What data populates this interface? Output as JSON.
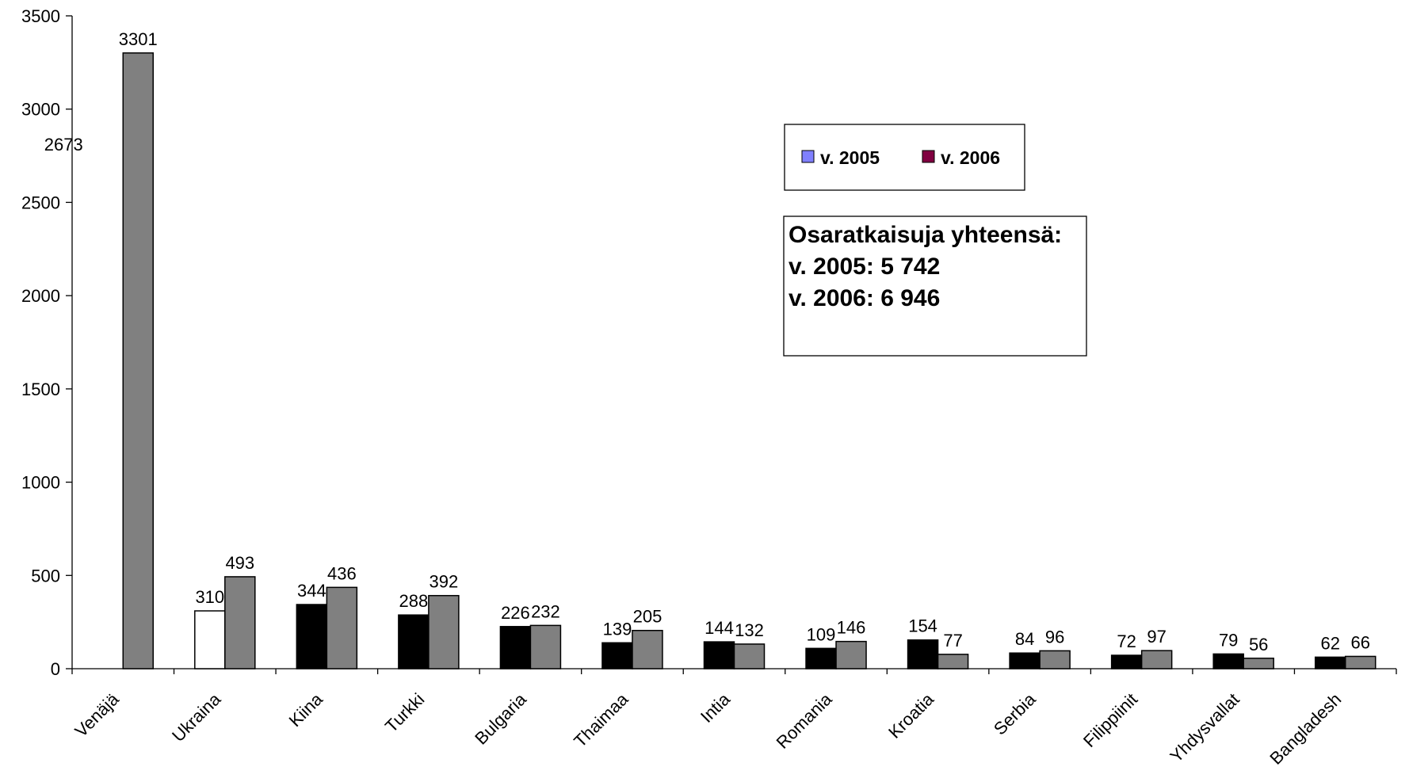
{
  "chart_data": {
    "type": "bar",
    "categories": [
      "Venäjä",
      "Ukraina",
      "Kiina",
      "Turkki",
      "Bulgaria",
      "Thaimaa",
      "Intia",
      "Romania",
      "Kroatia",
      "Serbia",
      "Filippiinit",
      "Yhdysvallat",
      "Bangladesh"
    ],
    "series": [
      {
        "name": "v. 2005",
        "values": [
          2673,
          310,
          344,
          288,
          226,
          139,
          144,
          109,
          154,
          84,
          72,
          79,
          62
        ],
        "color": "#000000",
        "legend_color": "#8080ff"
      },
      {
        "name": "v. 2006",
        "values": [
          3301,
          493,
          436,
          392,
          232,
          205,
          132,
          146,
          77,
          96,
          97,
          56,
          66
        ],
        "color": "#808080",
        "legend_color": "#800040"
      }
    ],
    "special_bar_colors": {
      "v. 2005": {
        "Venäjä": "#ffffff",
        "Ukraina": "#ffffff"
      }
    },
    "ylim": [
      0,
      3500
    ],
    "yticks": [
      0,
      500,
      1000,
      1500,
      2000,
      2500,
      3000,
      3500
    ],
    "grid": false,
    "legend_position": "top-right",
    "info_box": {
      "lines": [
        "Osaratkaisuja yhteensä:",
        "v. 2005: 5 742",
        "v. 2006: 6 946"
      ]
    }
  }
}
